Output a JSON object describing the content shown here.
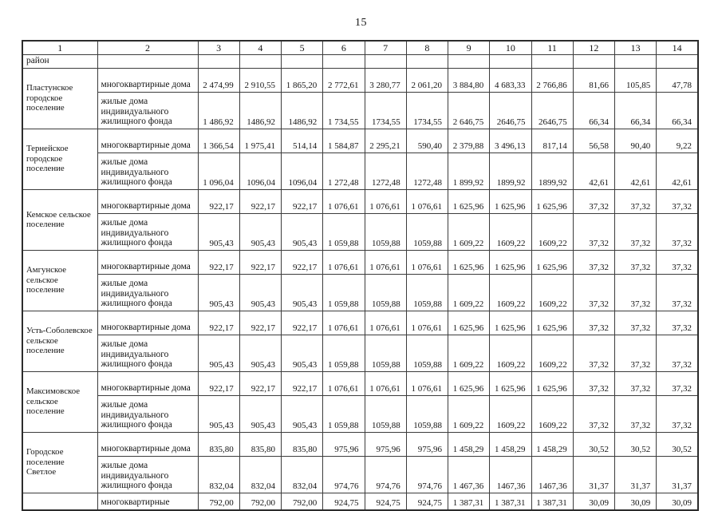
{
  "page": {
    "number": "15"
  },
  "table": {
    "columns": [
      "1",
      "2",
      "3",
      "4",
      "5",
      "6",
      "7",
      "8",
      "9",
      "10",
      "11",
      "12",
      "13",
      "14"
    ],
    "district_row_label": "район",
    "groups": [
      {
        "name": "Пластунское городское поселение",
        "rows": [
          {
            "type": "многоквартирные дома",
            "values": [
              "2 474,99",
              "2 910,55",
              "1 865,20",
              "2 772,61",
              "3 280,77",
              "2 061,20",
              "3 884,80",
              "4 683,33",
              "2 766,86",
              "81,66",
              "105,85",
              "47,78"
            ]
          },
          {
            "type": "жилые дома индивидуального жилищного фонда",
            "values": [
              "1 486,92",
              "1486,92",
              "1486,92",
              "1 734,55",
              "1734,55",
              "1734,55",
              "2 646,75",
              "2646,75",
              "2646,75",
              "66,34",
              "66,34",
              "66,34"
            ]
          }
        ]
      },
      {
        "name": "Тернейское городское поселение",
        "rows": [
          {
            "type": "многоквартирные дома",
            "values": [
              "1 366,54",
              "1 975,41",
              "514,14",
              "1 584,87",
              "2 295,21",
              "590,40",
              "2 379,88",
              "3 496,13",
              "817,14",
              "56,58",
              "90,40",
              "9,22"
            ]
          },
          {
            "type": "жилые дома индивидуального жилищного фонда",
            "values": [
              "1 096,04",
              "1096,04",
              "1096,04",
              "1 272,48",
              "1272,48",
              "1272,48",
              "1 899,92",
              "1899,92",
              "1899,92",
              "42,61",
              "42,61",
              "42,61"
            ]
          }
        ]
      },
      {
        "name": "Кемское сельское поселение",
        "rows": [
          {
            "type": "многоквартирные дома",
            "values": [
              "922,17",
              "922,17",
              "922,17",
              "1 076,61",
              "1 076,61",
              "1 076,61",
              "1 625,96",
              "1 625,96",
              "1 625,96",
              "37,32",
              "37,32",
              "37,32"
            ]
          },
          {
            "type": "жилые дома индивидуального жилищного фонда",
            "values": [
              "905,43",
              "905,43",
              "905,43",
              "1 059,88",
              "1059,88",
              "1059,88",
              "1 609,22",
              "1609,22",
              "1609,22",
              "37,32",
              "37,32",
              "37,32"
            ]
          }
        ]
      },
      {
        "name": "Амгунское сельское поселение",
        "rows": [
          {
            "type": "многоквартирные дома",
            "values": [
              "922,17",
              "922,17",
              "922,17",
              "1 076,61",
              "1 076,61",
              "1 076,61",
              "1 625,96",
              "1 625,96",
              "1 625,96",
              "37,32",
              "37,32",
              "37,32"
            ]
          },
          {
            "type": "жилые дома индивидуального жилищного фонда",
            "values": [
              "905,43",
              "905,43",
              "905,43",
              "1 059,88",
              "1059,88",
              "1059,88",
              "1 609,22",
              "1609,22",
              "1609,22",
              "37,32",
              "37,32",
              "37,32"
            ]
          }
        ]
      },
      {
        "name": "Усть-Соболевское сельское поселение",
        "rows": [
          {
            "type": "многоквартирные дома",
            "values": [
              "922,17",
              "922,17",
              "922,17",
              "1 076,61",
              "1 076,61",
              "1 076,61",
              "1 625,96",
              "1 625,96",
              "1 625,96",
              "37,32",
              "37,32",
              "37,32"
            ]
          },
          {
            "type": "жилые дома индивидуального жилищного фонда",
            "values": [
              "905,43",
              "905,43",
              "905,43",
              "1 059,88",
              "1059,88",
              "1059,88",
              "1 609,22",
              "1609,22",
              "1609,22",
              "37,32",
              "37,32",
              "37,32"
            ]
          }
        ]
      },
      {
        "name": "Максимовское сельское поселение",
        "rows": [
          {
            "type": "многоквартирные дома",
            "values": [
              "922,17",
              "922,17",
              "922,17",
              "1 076,61",
              "1 076,61",
              "1 076,61",
              "1 625,96",
              "1 625,96",
              "1 625,96",
              "37,32",
              "37,32",
              "37,32"
            ]
          },
          {
            "type": "жилые дома индивидуального жилищного фонда",
            "values": [
              "905,43",
              "905,43",
              "905,43",
              "1 059,88",
              "1059,88",
              "1059,88",
              "1 609,22",
              "1609,22",
              "1609,22",
              "37,32",
              "37,32",
              "37,32"
            ]
          }
        ]
      },
      {
        "name": "Городское поселение Светлое",
        "rows": [
          {
            "type": "многоквартирные дома",
            "values": [
              "835,80",
              "835,80",
              "835,80",
              "975,96",
              "975,96",
              "975,96",
              "1 458,29",
              "1 458,29",
              "1 458,29",
              "30,52",
              "30,52",
              "30,52"
            ]
          },
          {
            "type": "жилые дома индивидуального жилищного фонда",
            "values": [
              "832,04",
              "832,04",
              "832,04",
              "974,76",
              "974,76",
              "974,76",
              "1 467,36",
              "1467,36",
              "1467,36",
              "31,37",
              "31,37",
              "31,37"
            ]
          }
        ]
      }
    ],
    "last_row": {
      "type": "многоквартирные",
      "values": [
        "792,00",
        "792,00",
        "792,00",
        "924,75",
        "924,75",
        "924,75",
        "1 387,31",
        "1 387,31",
        "1 387,31",
        "30,09",
        "30,09",
        "30,09"
      ]
    }
  }
}
